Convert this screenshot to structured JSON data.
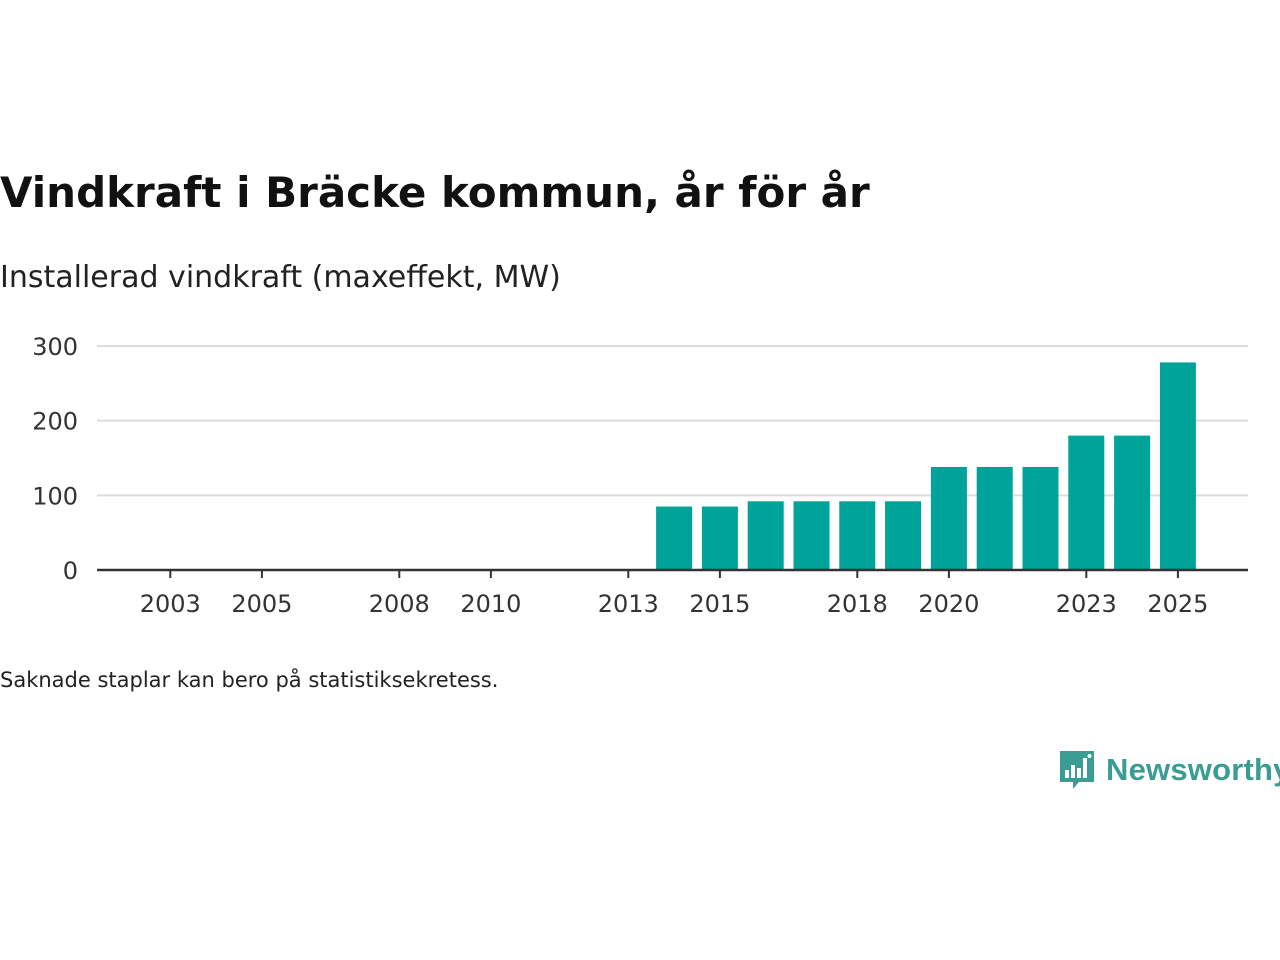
{
  "title": "Vindkraft i Bräcke kommun, år för år",
  "subtitle": "Installerad vindkraft (maxeffekt, MW)",
  "footnote": "Saknade staplar kan bero på statistiksekretess.",
  "brand": {
    "name": "Newsworthy",
    "color": "#3a9c93",
    "icon": "bar-chart-speech-bubble-icon"
  },
  "colors": {
    "bar": "#00a399",
    "grid": "#dddddd",
    "axis": "#333333"
  },
  "chart_data": {
    "type": "bar",
    "title": "Vindkraft i Bräcke kommun, år för år",
    "ylabel": "Installerad vindkraft (maxeffekt, MW)",
    "xlabel": "",
    "x_range": [
      2002,
      2026
    ],
    "ylim": [
      0,
      300
    ],
    "yticks": [
      0,
      100,
      200,
      300
    ],
    "xticks": [
      2003,
      2005,
      2008,
      2010,
      2013,
      2015,
      2018,
      2020,
      2023,
      2025
    ],
    "grid": true,
    "categories": [
      2014,
      2015,
      2016,
      2017,
      2018,
      2019,
      2020,
      2021,
      2022,
      2023,
      2024,
      2025
    ],
    "values": [
      85,
      85,
      92,
      92,
      92,
      92,
      138,
      138,
      138,
      180,
      180,
      278
    ]
  }
}
